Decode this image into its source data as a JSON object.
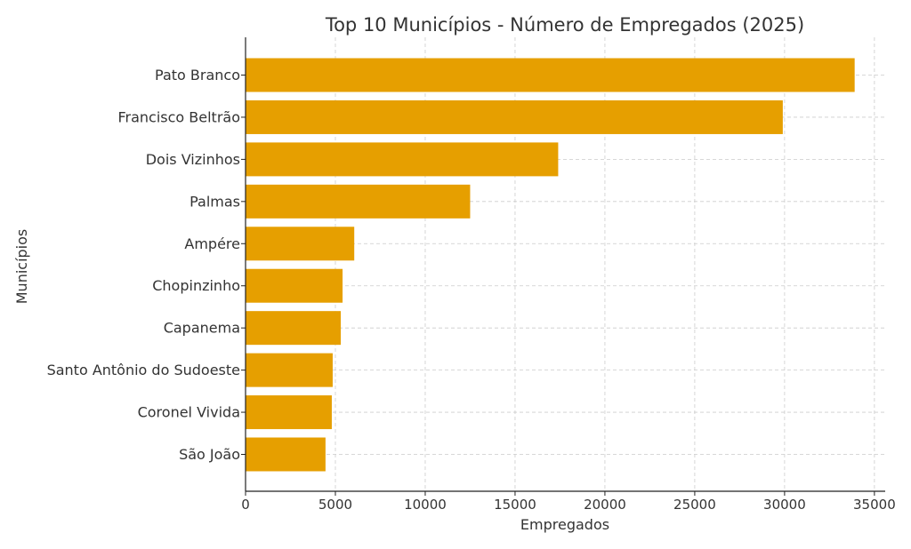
{
  "chart_data": {
    "type": "bar",
    "orientation": "horizontal",
    "title": "Top 10 Municípios - Número de Empregados (2025)",
    "xlabel": "Empregados",
    "ylabel": "Municípios",
    "categories": [
      "Pato Branco",
      "Francisco Beltrão",
      "Dois Vizinhos",
      "Palmas",
      "Ampére",
      "Chopinzinho",
      "Capanema",
      "Santo Antônio do Sudoeste",
      "Coronel Vivida",
      "São João"
    ],
    "values": [
      33900,
      29900,
      17400,
      12500,
      6050,
      5400,
      5300,
      4850,
      4800,
      4450
    ],
    "xlim": [
      0,
      35600
    ],
    "xticks": [
      0,
      5000,
      10000,
      15000,
      20000,
      25000,
      30000,
      35000
    ],
    "grid": true,
    "bar_color": "#e69f00"
  }
}
